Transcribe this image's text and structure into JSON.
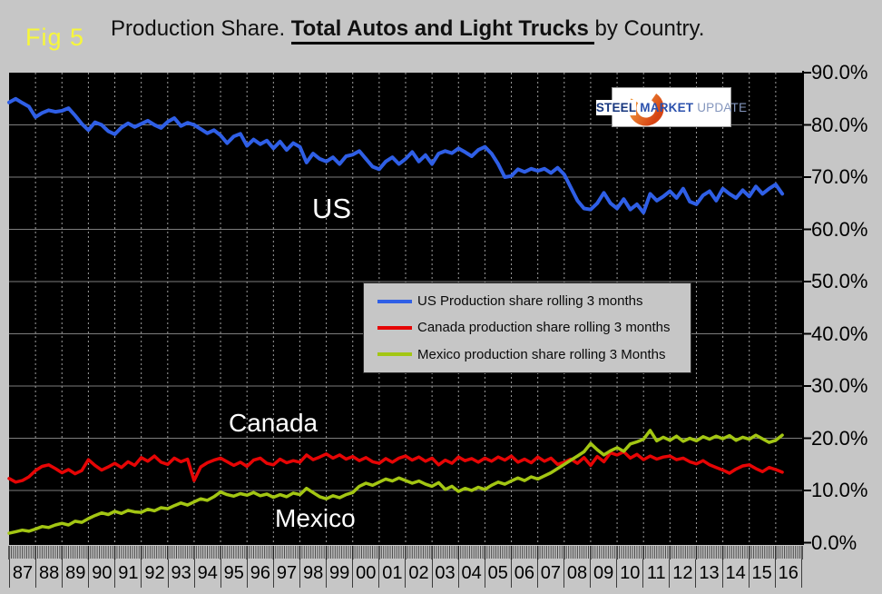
{
  "header": {
    "fig_label": "Fig 5",
    "title_prefix": "Production Share. ",
    "title_emph": "Total Autos and Light Trucks ",
    "title_suffix": "by Country."
  },
  "logo": {
    "word1": "STEEL",
    "word2": "MARKET",
    "word3": "UPDATE"
  },
  "series_labels": {
    "us": "US",
    "canada": "Canada",
    "mexico": "Mexico"
  },
  "legend": {
    "items": [
      {
        "label": "US Production share rolling 3 months",
        "color": "#2f5fe6"
      },
      {
        "label": "Canada production share rolling 3 months",
        "color": "#e60505"
      },
      {
        "label": "Mexico production share rolling 3 Months",
        "color": "#a3c613"
      }
    ]
  },
  "axes": {
    "y_tick_values": [
      90,
      80,
      70,
      60,
      50,
      40,
      30,
      20,
      10,
      0
    ],
    "y_tick_labels": [
      "90.0%",
      "80.0%",
      "70.0%",
      "60.0%",
      "50.0%",
      "40.0%",
      "30.0%",
      "20.0%",
      "10.0%",
      "0.0%"
    ],
    "x_tick_labels": [
      "87",
      "88",
      "89",
      "90",
      "91",
      "92",
      "93",
      "94",
      "95",
      "96",
      "97",
      "98",
      "99",
      "00",
      "01",
      "02",
      "03",
      "04",
      "05",
      "06",
      "07",
      "08",
      "09",
      "10",
      "11",
      "12",
      "13",
      "14",
      "15",
      "16"
    ]
  },
  "colors": {
    "page_bg": "#c6c6c6",
    "plot_bg": "#000000",
    "grid_major": "#7d7d7d",
    "grid_dotted": "#9e9e9e",
    "axis": "#000000",
    "comb_tick": "#474747",
    "fig_label_yellow": "#f7f73a"
  },
  "chart_data": {
    "type": "line",
    "title": "Production Share. Total Autos and Light Trucks by Country.",
    "x_start": 1987.0,
    "x_step": 0.25,
    "x_range": [
      1987,
      2017
    ],
    "ylim": [
      0,
      90
    ],
    "y_unit": "%",
    "grid": true,
    "legend_position": "center",
    "series": [
      {
        "name": "US Production share rolling 3 months",
        "color": "#2f5fe6",
        "width": 4,
        "values": [
          84.3,
          85.0,
          84.2,
          83.5,
          81.5,
          82.3,
          82.8,
          82.5,
          82.7,
          83.2,
          81.8,
          80.2,
          79.0,
          80.5,
          80.0,
          78.8,
          78.2,
          79.5,
          80.3,
          79.6,
          80.2,
          80.8,
          80.0,
          79.4,
          80.6,
          81.3,
          79.8,
          80.4,
          80.0,
          79.2,
          78.4,
          79.0,
          78.0,
          76.5,
          77.8,
          78.3,
          76.0,
          77.2,
          76.3,
          77.0,
          75.5,
          76.8,
          75.2,
          76.5,
          75.8,
          72.8,
          74.5,
          73.5,
          73.0,
          73.8,
          72.5,
          74.0,
          74.3,
          75.0,
          73.5,
          72.0,
          71.5,
          73.0,
          73.8,
          72.5,
          73.5,
          74.8,
          73.0,
          74.2,
          72.5,
          74.5,
          75.0,
          74.6,
          75.5,
          74.8,
          74.0,
          75.2,
          75.8,
          74.5,
          72.5,
          70.0,
          70.2,
          71.5,
          71.0,
          71.6,
          71.2,
          71.6,
          70.8,
          71.8,
          70.5,
          68.0,
          65.5,
          64.0,
          63.8,
          65.0,
          67.0,
          65.0,
          64.0,
          65.8,
          63.8,
          64.8,
          63.2,
          66.8,
          65.5,
          66.3,
          67.3,
          66.0,
          67.8,
          65.3,
          64.8,
          66.5,
          67.3,
          65.5,
          67.8,
          66.8,
          66.0,
          67.5,
          66.3,
          68.2,
          66.8,
          67.8,
          68.6,
          66.8
        ]
      },
      {
        "name": "Canada production share rolling 3 months",
        "color": "#e60505",
        "width": 3.5,
        "values": [
          12.3,
          11.6,
          11.9,
          12.6,
          13.8,
          14.6,
          14.9,
          14.2,
          13.4,
          14.0,
          13.2,
          13.8,
          15.9,
          14.8,
          13.9,
          14.5,
          15.2,
          14.4,
          15.5,
          14.8,
          16.3,
          15.6,
          16.6,
          15.4,
          15.0,
          16.2,
          15.5,
          16.0,
          11.9,
          14.5,
          15.3,
          15.8,
          16.2,
          15.5,
          14.8,
          15.4,
          14.6,
          15.8,
          16.2,
          15.2,
          14.9,
          16.0,
          15.3,
          15.7,
          15.4,
          16.8,
          15.9,
          16.4,
          17.0,
          16.2,
          16.8,
          16.0,
          16.5,
          15.7,
          16.3,
          15.5,
          15.2,
          16.1,
          15.4,
          16.2,
          16.6,
          15.8,
          16.4,
          15.6,
          16.2,
          14.9,
          15.8,
          15.2,
          16.4,
          15.7,
          16.1,
          15.4,
          16.2,
          15.6,
          16.4,
          15.8,
          16.6,
          15.4,
          16.0,
          15.3,
          16.4,
          15.6,
          16.2,
          15.0,
          15.4,
          16.0,
          15.2,
          16.3,
          14.8,
          16.5,
          15.5,
          17.2,
          16.8,
          17.4,
          16.2,
          16.9,
          15.9,
          16.6,
          16.0,
          16.4,
          16.6,
          15.9,
          16.2,
          15.5,
          15.1,
          15.7,
          14.9,
          14.4,
          13.9,
          13.3,
          14.1,
          14.7,
          14.9,
          14.2,
          13.6,
          14.4,
          14.0,
          13.5
        ]
      },
      {
        "name": "Mexico production share rolling 3 Months",
        "color": "#a3c613",
        "width": 3.5,
        "values": [
          1.8,
          2.1,
          2.4,
          2.2,
          2.6,
          3.1,
          2.9,
          3.4,
          3.7,
          3.4,
          4.1,
          3.9,
          4.6,
          5.2,
          5.7,
          5.4,
          6.0,
          5.6,
          6.2,
          5.9,
          5.8,
          6.4,
          6.1,
          6.7,
          6.5,
          7.1,
          7.6,
          7.2,
          7.8,
          8.4,
          8.1,
          8.8,
          9.7,
          9.2,
          8.9,
          9.4,
          9.1,
          9.6,
          9.0,
          9.3,
          8.7,
          9.2,
          8.8,
          9.5,
          9.2,
          10.4,
          9.6,
          8.8,
          8.4,
          9.0,
          8.6,
          9.2,
          9.6,
          10.8,
          11.4,
          11.0,
          11.6,
          12.2,
          11.8,
          12.4,
          11.9,
          11.4,
          11.8,
          11.2,
          10.8,
          11.5,
          10.2,
          10.8,
          9.8,
          10.4,
          10.0,
          10.6,
          10.2,
          11.0,
          11.6,
          11.2,
          11.8,
          12.4,
          11.9,
          12.6,
          12.2,
          12.8,
          13.4,
          14.2,
          15.0,
          15.8,
          16.6,
          17.4,
          19.0,
          17.8,
          16.8,
          17.6,
          18.2,
          17.5,
          18.9,
          19.3,
          19.8,
          21.5,
          19.5,
          20.2,
          19.6,
          20.4,
          19.4,
          20.0,
          19.5,
          20.3,
          19.8,
          20.4,
          19.9,
          20.5,
          19.6,
          20.2,
          19.8,
          20.6,
          19.9,
          19.2,
          19.6,
          20.6
        ]
      }
    ]
  }
}
